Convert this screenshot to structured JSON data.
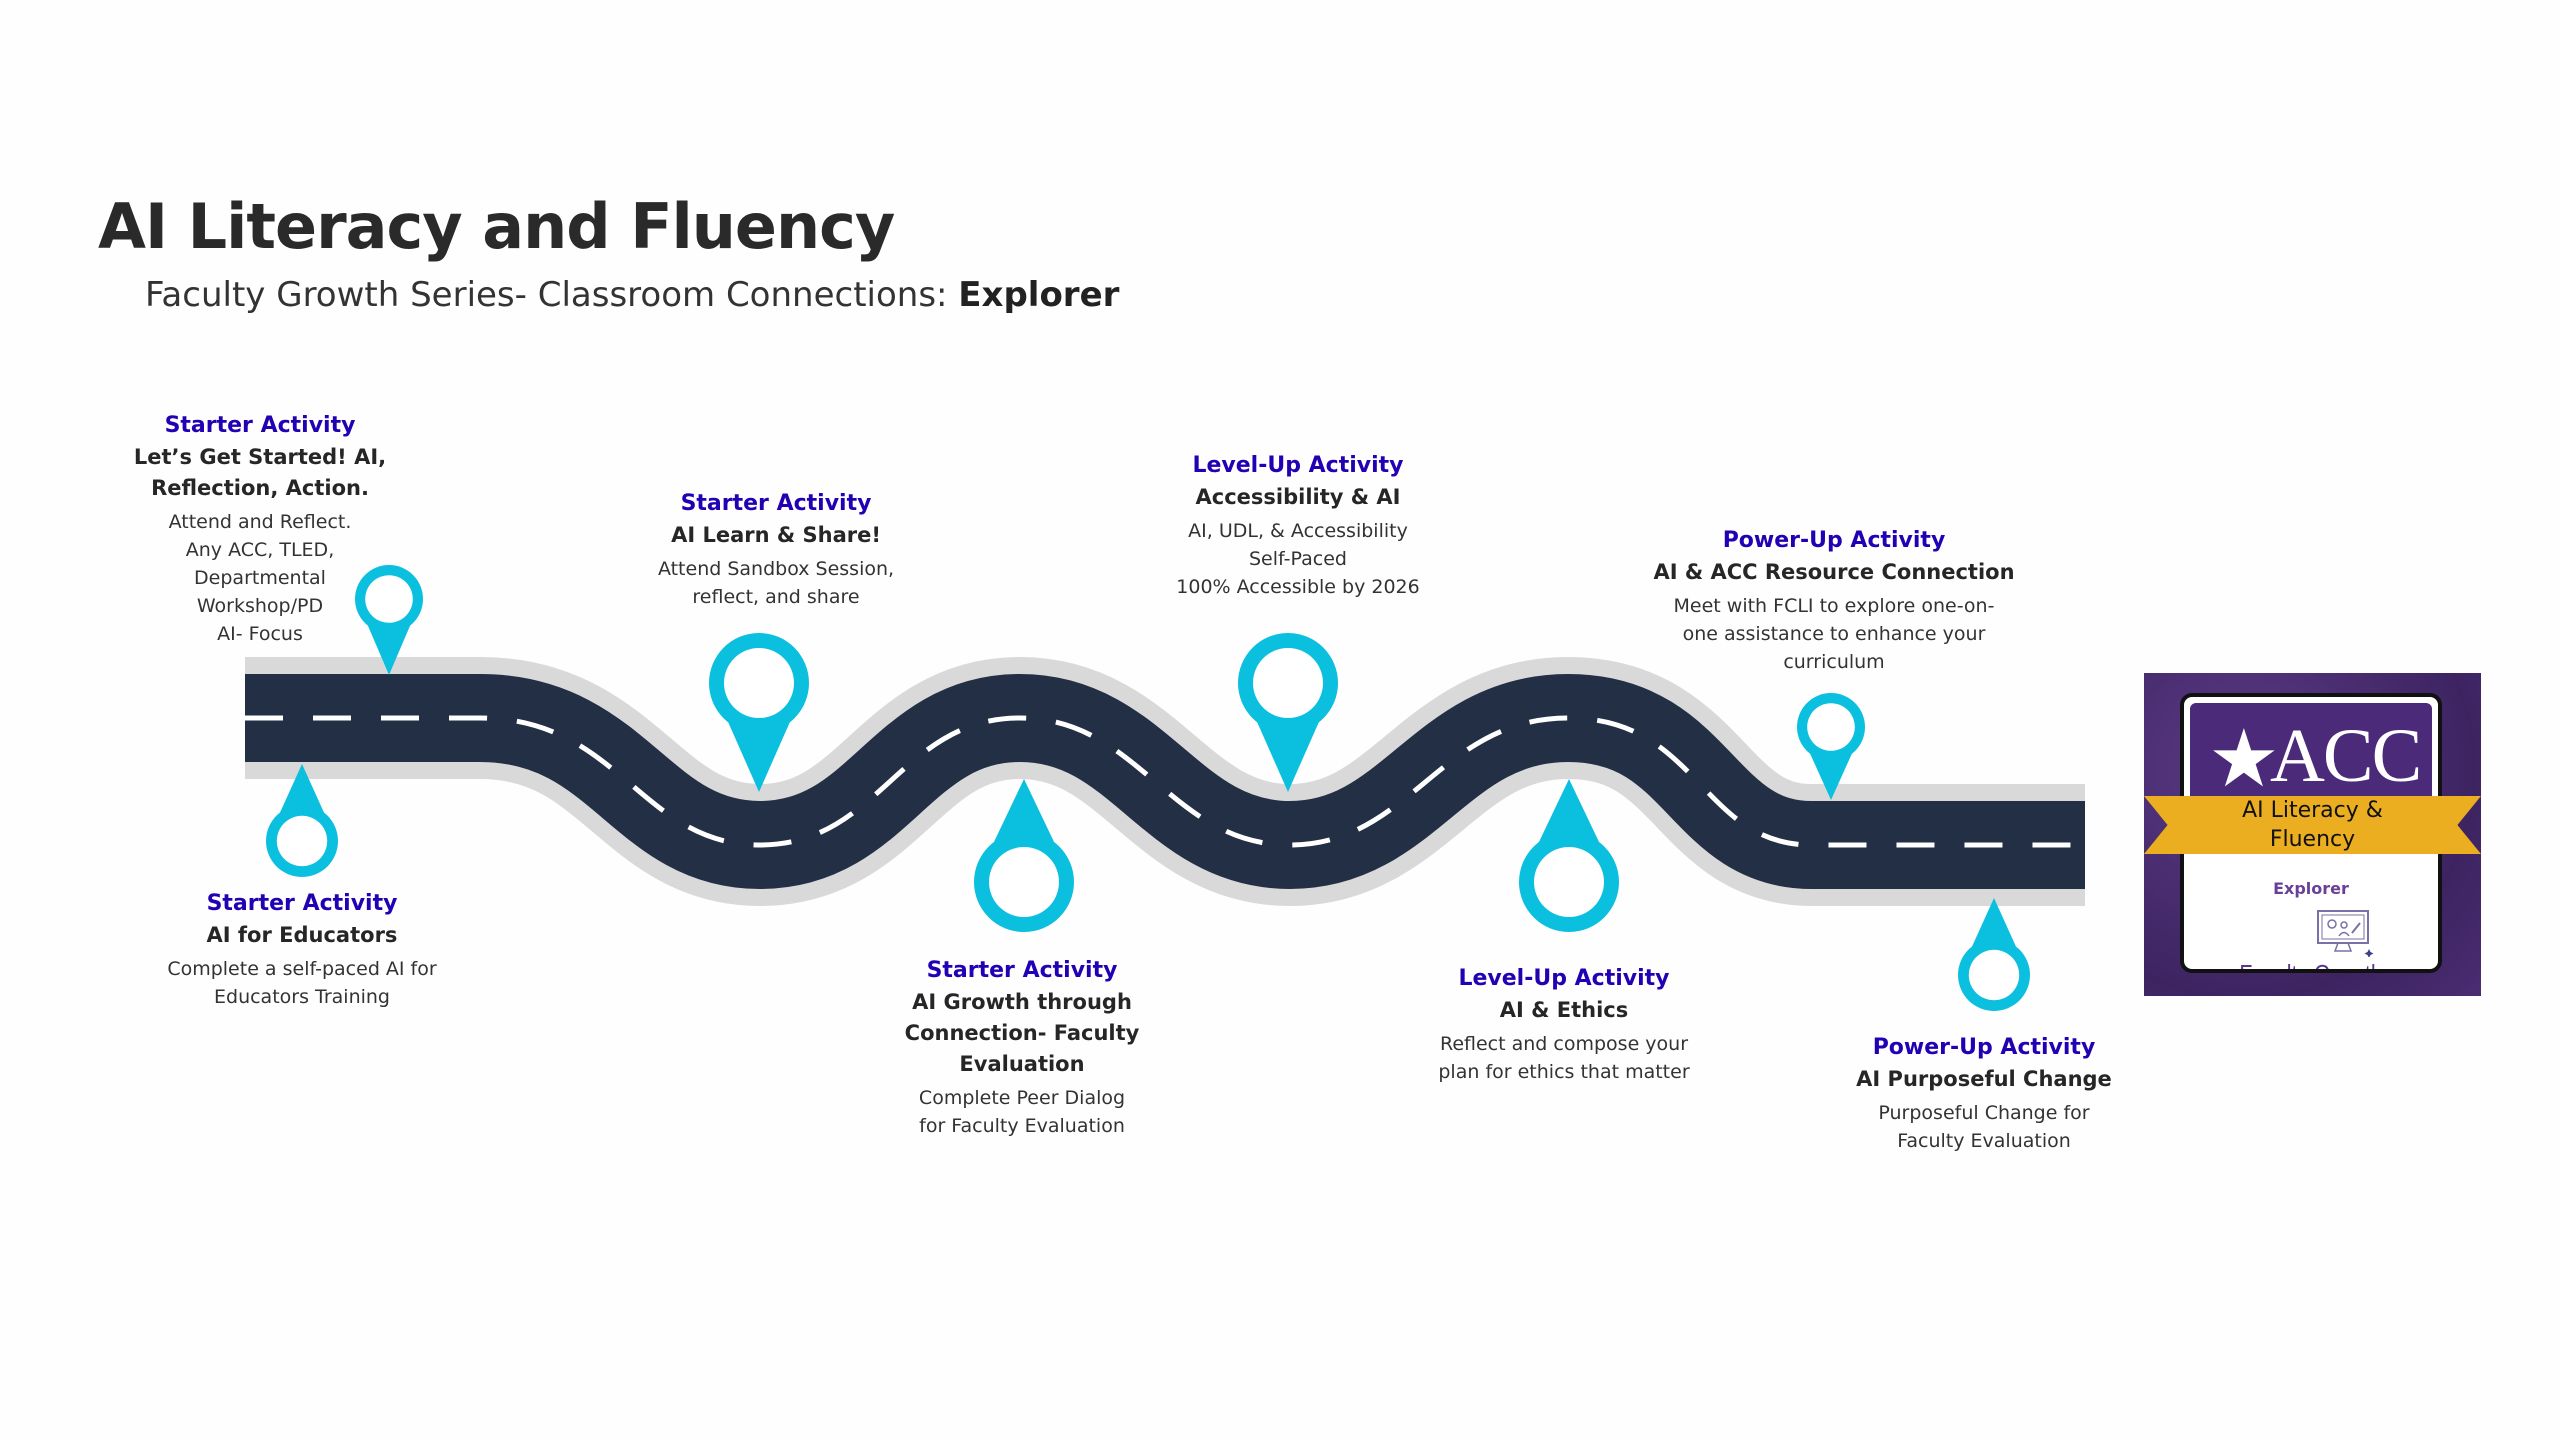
{
  "header": {
    "title": "AI Literacy and Fluency",
    "subtitle_prefix": "Faculty Growth Series- Classroom Connections: ",
    "subtitle_bold": "Explorer"
  },
  "colors": {
    "road": "#232f45",
    "road_edge": "#d9d9d9",
    "pin": "#0bbfdf",
    "category": "#2200b4",
    "badge_purple": "#4b2a7a",
    "ribbon_gold": "#ebae21"
  },
  "activities": [
    {
      "category": "Starter Activity",
      "title": "Let’s Get Started!  AI,\nReflection, Action.",
      "body": "Attend and Reflect.\nAny ACC, TLED,\nDepartmental\nWorkshop/PD\nAI- Focus"
    },
    {
      "category": "Starter Activity",
      "title": "AI Learn & Share!",
      "body": "Attend Sandbox Session,\nreflect, and share"
    },
    {
      "category": "Level-Up Activity",
      "title": "Accessibility & AI",
      "body": "AI, UDL, & Accessibility\nSelf-Paced\n100% Accessible by 2026"
    },
    {
      "category": "Power-Up Activity",
      "title": "AI & ACC Resource Connection",
      "body": "Meet with FCLI to explore one-on-\none assistance to enhance your\ncurriculum"
    },
    {
      "category": "Starter Activity",
      "title": "AI for Educators",
      "body": "Complete a self-paced AI for\nEducators Training"
    },
    {
      "category": "Starter Activity",
      "title": "AI Growth through\nConnection- Faculty\nEvaluation",
      "body": "Complete Peer Dialog\nfor Faculty Evaluation"
    },
    {
      "category": "Level-Up Activity",
      "title": "AI & Ethics",
      "body": "Reflect and compose your\nplan for ethics that matter"
    },
    {
      "category": "Power-Up Activity",
      "title": "AI Purposeful Change",
      "body": "Purposeful Change for\nFaculty Evaluation"
    }
  ],
  "badge": {
    "logo_text": "ACC",
    "ribbon_text": "AI Literacy &\nFluency",
    "level": "Explorer",
    "series": "Faculty Growth Series",
    "icons": [
      "star-logo-icon",
      "computer-monitor-icon"
    ]
  }
}
